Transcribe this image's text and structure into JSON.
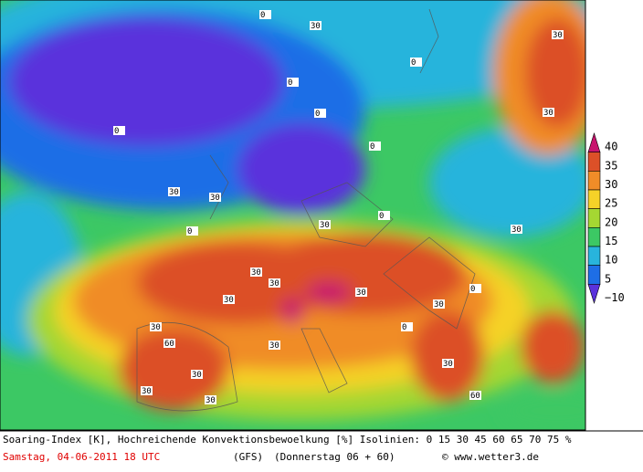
{
  "colorbar": {
    "labels": [
      "40",
      "35",
      "30",
      "25",
      "20",
      "15",
      "10",
      "5",
      "−10"
    ],
    "colors": [
      "#c8146e",
      "#dc5028",
      "#f08c28",
      "#f5d228",
      "#a5d732",
      "#3cc864",
      "#28b4dc",
      "#1e6ee6",
      "#5a32dc"
    ]
  },
  "isoline_labels": [
    "30",
    "30",
    "30",
    "30",
    "0",
    "0",
    "0",
    "0",
    "0",
    "30",
    "60",
    "30",
    "30",
    "30",
    "30",
    "0",
    "30",
    "30",
    "60",
    "30",
    "30",
    "30",
    "0",
    "0",
    "30",
    "30",
    "30",
    "0",
    "30",
    "0"
  ],
  "footer": {
    "line1": "Soaring-Index [K], Hochreichende Konvektionsbewoelkung [%] Isolinien: 0 15 30 45 60 65 70 75 %",
    "date": "Samstag, 04-06-2011  18 UTC",
    "model": "(GFS)",
    "run": "(Donnerstag 06 + 60)",
    "credit": "© www.wetter3.de"
  }
}
